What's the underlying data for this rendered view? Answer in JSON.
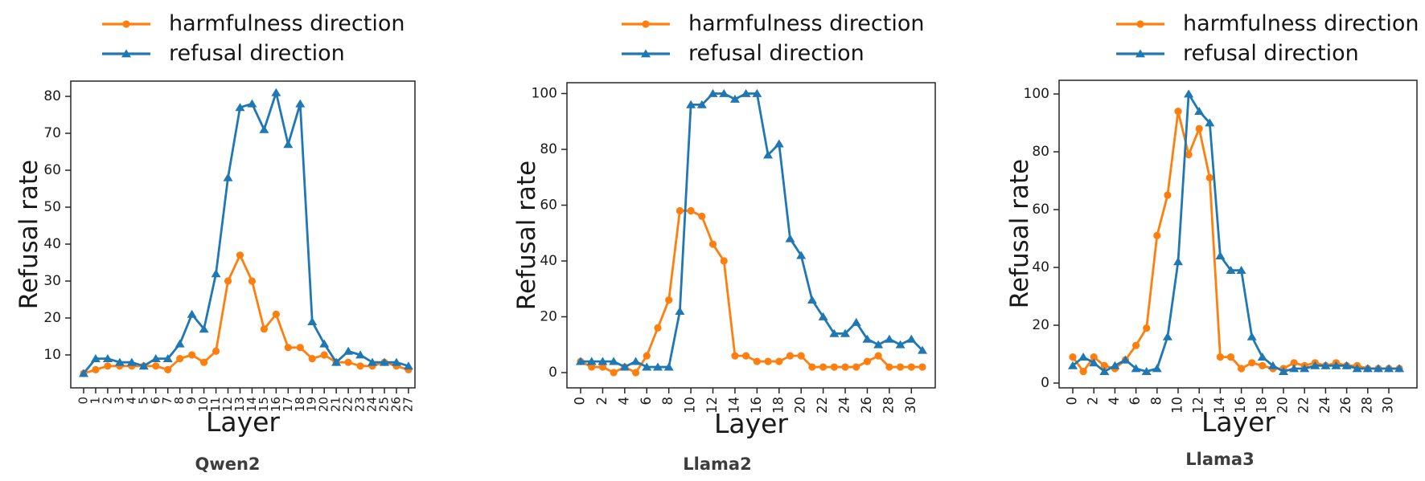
{
  "page": {
    "background": "#ffffff"
  },
  "chart_data": [
    {
      "type": "line",
      "title": "Qwen2",
      "xlabel": "Layer",
      "ylabel": "Refusal rate",
      "legend_position": "above",
      "grid": false,
      "ylim": [
        1,
        84
      ],
      "yticks": [
        10,
        20,
        30,
        40,
        50,
        60,
        70,
        80
      ],
      "xticks": [
        0,
        1,
        2,
        3,
        4,
        5,
        6,
        7,
        8,
        9,
        10,
        11,
        12,
        13,
        14,
        15,
        16,
        17,
        18,
        19,
        20,
        21,
        22,
        23,
        24,
        25,
        26,
        27
      ],
      "x": [
        0,
        1,
        2,
        3,
        4,
        5,
        6,
        7,
        8,
        9,
        10,
        11,
        12,
        13,
        14,
        15,
        16,
        17,
        18,
        19,
        20,
        21,
        22,
        23,
        24,
        25,
        26,
        27
      ],
      "series": [
        {
          "name": "harmfulness direction",
          "color": "#ff7f0e",
          "marker": "circle",
          "values": [
            5,
            6,
            7,
            7,
            7,
            7,
            7,
            6,
            9,
            10,
            8,
            11,
            30,
            37,
            30,
            17,
            21,
            12,
            12,
            9,
            10,
            8,
            8,
            7,
            7,
            8,
            7,
            6
          ]
        },
        {
          "name": "refusal direction",
          "color": "#1f77b4",
          "marker": "triangle",
          "values": [
            5,
            9,
            9,
            8,
            8,
            7,
            9,
            9,
            13,
            21,
            17,
            32,
            58,
            77,
            78,
            71,
            81,
            67,
            78,
            19,
            13,
            8,
            11,
            10,
            8,
            8,
            8,
            7
          ]
        }
      ]
    },
    {
      "type": "line",
      "title": "Llama2",
      "xlabel": "Layer",
      "ylabel": "Refusal rate",
      "legend_position": "above",
      "grid": false,
      "ylim": [
        -5.5,
        104
      ],
      "yticks": [
        0,
        20,
        40,
        60,
        80,
        100
      ],
      "xticks": [
        0,
        2,
        4,
        6,
        8,
        10,
        12,
        14,
        16,
        18,
        20,
        22,
        24,
        26,
        28,
        30
      ],
      "x": [
        0,
        1,
        2,
        3,
        4,
        5,
        6,
        7,
        8,
        9,
        10,
        11,
        12,
        13,
        14,
        15,
        16,
        17,
        18,
        19,
        20,
        21,
        22,
        23,
        24,
        25,
        26,
        27,
        28,
        29,
        30,
        31
      ],
      "series": [
        {
          "name": "harmfulness direction",
          "color": "#ff7f0e",
          "marker": "circle",
          "values": [
            4,
            2,
            2,
            0,
            2,
            0,
            6,
            16,
            26,
            58,
            58,
            56,
            46,
            40,
            6,
            6,
            4,
            4,
            4,
            6,
            6,
            2,
            2,
            2,
            2,
            2,
            4,
            6,
            2,
            2,
            2,
            2
          ]
        },
        {
          "name": "refusal direction",
          "color": "#1f77b4",
          "marker": "triangle",
          "values": [
            4,
            4,
            4,
            4,
            2,
            4,
            2,
            2,
            2,
            22,
            96,
            96,
            100,
            100,
            98,
            100,
            100,
            78,
            82,
            48,
            42,
            26,
            20,
            14,
            14,
            18,
            12,
            10,
            12,
            10,
            12,
            8
          ]
        }
      ]
    },
    {
      "type": "line",
      "title": "Llama3",
      "xlabel": "Layer",
      "ylabel": "Refusal rate",
      "legend_position": "above",
      "grid": false,
      "ylim": [
        -2,
        104.5
      ],
      "yticks": [
        0,
        20,
        40,
        60,
        80,
        100
      ],
      "xticks": [
        0,
        2,
        4,
        6,
        8,
        10,
        12,
        14,
        16,
        18,
        20,
        22,
        24,
        26,
        28,
        30
      ],
      "x": [
        0,
        1,
        2,
        3,
        4,
        5,
        6,
        7,
        8,
        9,
        10,
        11,
        12,
        13,
        14,
        15,
        16,
        17,
        18,
        19,
        20,
        21,
        22,
        23,
        24,
        25,
        26,
        27,
        28,
        29,
        30,
        31
      ],
      "series": [
        {
          "name": "harmfulness direction",
          "color": "#ff7f0e",
          "marker": "circle",
          "values": [
            9,
            4,
            9,
            6,
            5,
            8,
            13,
            19,
            51,
            65,
            94,
            79,
            88,
            71,
            9,
            9,
            5,
            7,
            6,
            5,
            5,
            7,
            6,
            7,
            6,
            7,
            6,
            6,
            5,
            5,
            5,
            5
          ]
        },
        {
          "name": "refusal direction",
          "color": "#1f77b4",
          "marker": "triangle",
          "values": [
            6,
            9,
            7,
            4,
            6,
            8,
            5,
            4,
            5,
            16,
            42,
            100,
            94,
            90,
            44,
            39,
            39,
            16,
            9,
            6,
            4,
            5,
            5,
            6,
            6,
            6,
            6,
            5,
            5,
            5,
            5,
            5
          ]
        }
      ]
    }
  ]
}
